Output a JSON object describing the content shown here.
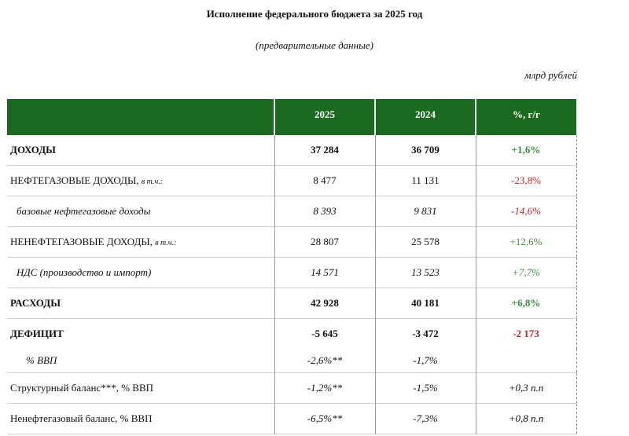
{
  "header": {
    "title": "Исполнение федерального бюджета за 2025 год",
    "subtitle": "(предварительные данные)",
    "units": "млрд рублей"
  },
  "table": {
    "columns": [
      "",
      "2025",
      "2024",
      "%, г/г"
    ],
    "rows": [
      {
        "label": "ДОХОДЫ",
        "note": "",
        "v2025": "37 284",
        "v2024": "36 709",
        "change": "+1,6%"
      },
      {
        "label": "НЕФТЕГАЗОВЫЕ ДОХОДЫ,",
        "note": "в т.ч.:",
        "v2025": "8 477",
        "v2024": "11 131",
        "change": "-23,8%"
      },
      {
        "label": "базовые нефтегазовые доходы",
        "note": "",
        "v2025": "8 393",
        "v2024": "9 831",
        "change": "-14,6%"
      },
      {
        "label": "НЕНЕФТЕГАЗОВЫЕ ДОХОДЫ,",
        "note": "в т.ч.:",
        "v2025": "28 807",
        "v2024": "25 578",
        "change": "+12,6%"
      },
      {
        "label": "НДС (производство и импорт)",
        "note": "",
        "v2025": "14 571",
        "v2024": "13 523",
        "change": "+7,7%"
      },
      {
        "label": "РАСХОДЫ",
        "note": "",
        "v2025": "42 928",
        "v2024": "40 181",
        "change": "+6,8%"
      },
      {
        "label": "ДЕФИЦИТ",
        "note": "",
        "v2025": "-5 645",
        "v2024": "-3 472",
        "change": "-2 173"
      },
      {
        "label": "% ВВП",
        "note": "",
        "v2025": "-2,6%**",
        "v2024": "-1,7%",
        "change": ""
      },
      {
        "label": "Структурный баланс***, % ВВП",
        "note": "",
        "v2025": "-1,2%**",
        "v2024": "-1,5%",
        "change": "+0,3 п.п"
      },
      {
        "label": "Ненефтегазовый баланс, % ВВП",
        "note": "",
        "v2025": "-6,5%**",
        "v2024": "-7,3%",
        "change": "+0,8 п.п"
      }
    ]
  },
  "colors": {
    "header_bg": "#1a6b1f",
    "negative": "#c0282a",
    "positive": "#3e8e41"
  }
}
